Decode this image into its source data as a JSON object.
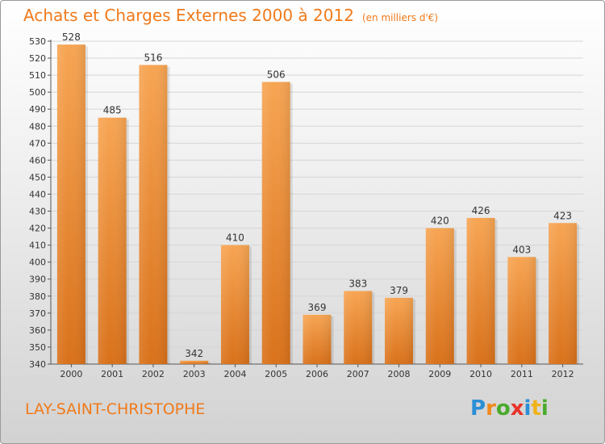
{
  "title": "Achats et Charges Externes 2000 à 2012",
  "subtitle": "(en milliers d'€)",
  "commune": "LAY-SAINT-CHRISTOPHE",
  "logo": {
    "text": "Proxiti",
    "letters": [
      {
        "ch": "P",
        "color": "#2a8fd6"
      },
      {
        "ch": "r",
        "color": "#f08a1a"
      },
      {
        "ch": "o",
        "color": "#4aaa2c"
      },
      {
        "ch": "x",
        "color": "#e8322a"
      },
      {
        "ch": "i",
        "color": "#2a8fd6"
      },
      {
        "ch": "t",
        "color": "#f0b21a"
      },
      {
        "ch": "i",
        "color": "#4aaa2c"
      }
    ]
  },
  "chart_data": {
    "type": "bar",
    "categories": [
      "2000",
      "2001",
      "2002",
      "2003",
      "2004",
      "2005",
      "2006",
      "2007",
      "2008",
      "2009",
      "2010",
      "2011",
      "2012"
    ],
    "values": [
      528,
      485,
      516,
      342,
      410,
      506,
      369,
      383,
      379,
      420,
      426,
      403,
      423
    ],
    "ylim": [
      340,
      530
    ],
    "yticks": [
      340,
      350,
      360,
      370,
      380,
      390,
      400,
      410,
      420,
      430,
      440,
      450,
      460,
      470,
      480,
      490,
      500,
      510,
      520,
      530
    ],
    "grid": true,
    "bar_color": "#f08c30"
  }
}
